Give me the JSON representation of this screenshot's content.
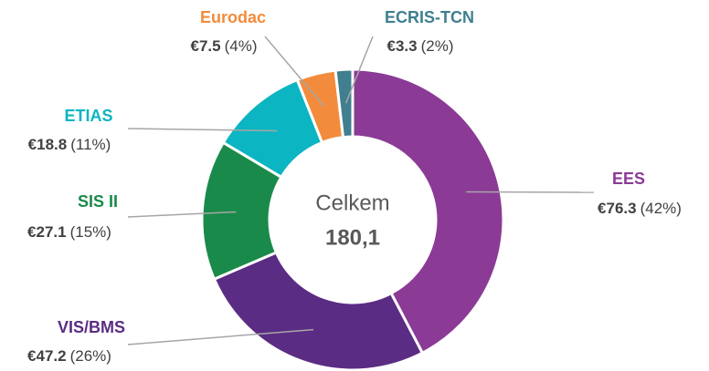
{
  "chart_data": {
    "type": "donut",
    "categories": [
      "EES",
      "VIS/BMS",
      "SIS II",
      "ETIAS",
      "Eurodac",
      "ECRIS-TCN"
    ],
    "values": [
      76.3,
      47.2,
      27.1,
      18.8,
      7.5,
      3.3
    ],
    "value_labels": [
      "€76.3",
      "€47.2",
      "€27.1",
      "€18.8",
      "€7.5",
      "€3.3"
    ],
    "shares": [
      42,
      26,
      15,
      11,
      4,
      2
    ],
    "share_labels": [
      "(42%)",
      "(26%)",
      "(15%)",
      "(11%)",
      "(4%)",
      "(2%)"
    ],
    "colors": [
      "#8b3a96",
      "#5b2c83",
      "#1a8a4a",
      "#0bb5c2",
      "#f28c3c",
      "#3f7f8f"
    ],
    "center_label": "Celkem",
    "total": 180.1,
    "total_label": "180,1"
  }
}
